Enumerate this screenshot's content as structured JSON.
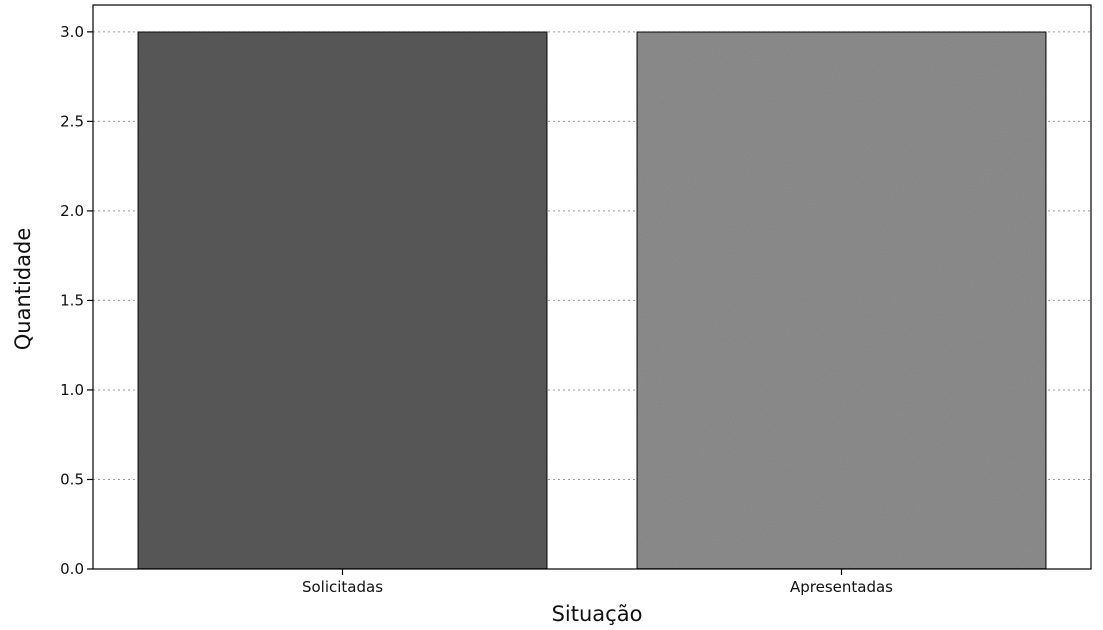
{
  "chart_data": {
    "type": "bar",
    "categories": [
      "Solicitadas",
      "Apresentadas"
    ],
    "values": [
      3,
      3
    ],
    "title": "",
    "xlabel": "Situação",
    "ylabel": "Quantidade",
    "ylim": [
      0,
      3.15
    ],
    "yticks": [
      "0.0",
      "0.5",
      "1.0",
      "1.5",
      "2.0",
      "2.5",
      "3.0"
    ],
    "grid": "horizontal dotted",
    "legend": "none",
    "bar_colors": [
      "#5a5a5a",
      "#8e8e8e"
    ]
  }
}
